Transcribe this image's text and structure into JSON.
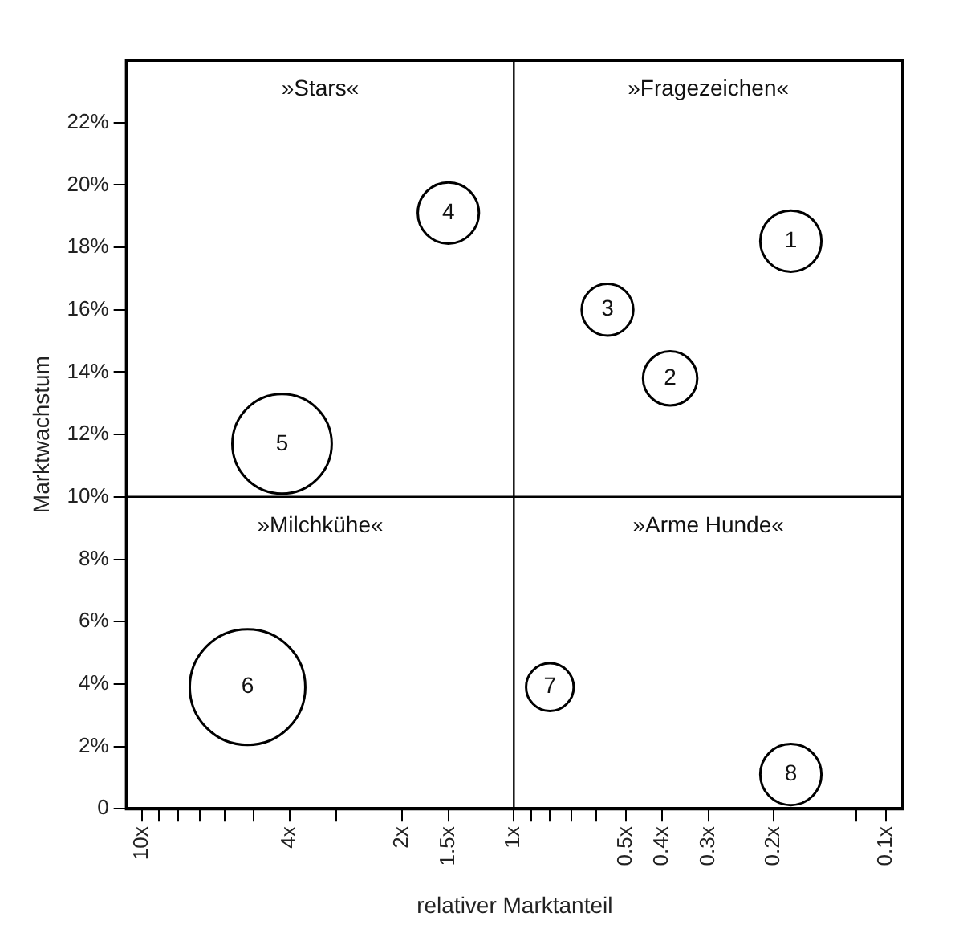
{
  "chart_data": {
    "type": "bubble",
    "xlabel": "relativer Marktanteil",
    "ylabel": "Marktwachstum",
    "log": "x",
    "xlim": [
      11,
      0.09
    ],
    "ylim": [
      0,
      24
    ],
    "xticks": [
      {
        "value": 10,
        "label": "10x"
      },
      {
        "value": 9,
        "label": null
      },
      {
        "value": 8,
        "label": null
      },
      {
        "value": 7,
        "label": null
      },
      {
        "value": 6,
        "label": null
      },
      {
        "value": 5,
        "label": null
      },
      {
        "value": 4,
        "label": "4x"
      },
      {
        "value": 3,
        "label": null
      },
      {
        "value": 2,
        "label": "2x"
      },
      {
        "value": 1.5,
        "label": "1.5x"
      },
      {
        "value": 1,
        "label": "1x"
      },
      {
        "value": 0.9,
        "label": null
      },
      {
        "value": 0.8,
        "label": null
      },
      {
        "value": 0.7,
        "label": null
      },
      {
        "value": 0.6,
        "label": null
      },
      {
        "value": 0.5,
        "label": "0.5x"
      },
      {
        "value": 0.4,
        "label": "0.4x"
      },
      {
        "value": 0.3,
        "label": "0.3x"
      },
      {
        "value": 0.2,
        "label": "0.2x"
      },
      {
        "value": 0.12,
        "label": null
      },
      {
        "value": 0.1,
        "label": "0.1x"
      }
    ],
    "yticks": [
      0,
      {
        "value": 2,
        "label": "2%"
      },
      {
        "value": 4,
        "label": "4%"
      },
      {
        "value": 6,
        "label": "6%"
      },
      {
        "value": 8,
        "label": "8%"
      },
      {
        "value": 10,
        "label": "10%"
      },
      {
        "value": 12,
        "label": "12%"
      },
      {
        "value": 14,
        "label": "14%"
      },
      {
        "value": 16,
        "label": "16%"
      },
      {
        "value": 18,
        "label": "18%"
      },
      {
        "value": 20,
        "label": "20%"
      },
      {
        "value": 22,
        "label": "22%"
      }
    ],
    "grid": false,
    "legend": false,
    "marker": "circle",
    "series": [
      {
        "color": "#000000",
        "x": [
          0.18,
          0.38,
          0.56,
          1.5,
          4.2,
          5.2,
          0.8,
          0.18
        ],
        "values": [
          18.2,
          13.8,
          16.0,
          19.1,
          11.7,
          3.9,
          3.9,
          1.1
        ],
        "sizes": [
          0.28,
          0.22,
          0.2,
          0.28,
          0.74,
          1,
          0.17,
          0.28
        ]
      }
    ],
    "ref_lines": [
      {
        "axis": "x",
        "value": 1
      },
      {
        "axis": "y",
        "value": 10
      }
    ],
    "annotations": [
      {
        "text": "1",
        "x": 0.18,
        "y": 18.2
      },
      {
        "text": "2",
        "x": 0.38,
        "y": 13.8
      },
      {
        "text": "3",
        "x": 0.56,
        "y": 16.0
      },
      {
        "text": "4",
        "x": 1.5,
        "y": 19.1
      },
      {
        "text": "5",
        "x": 4.2,
        "y": 11.7
      },
      {
        "text": "6",
        "x": 5.2,
        "y": 3.9
      },
      {
        "text": "7",
        "x": 0.8,
        "y": 3.9
      },
      {
        "text": "8",
        "x": 0.18,
        "y": 1.1
      },
      "»Stars«",
      "»Fragezeichen«",
      "»Milchkühe«",
      "»Arme Hunde«"
    ]
  }
}
